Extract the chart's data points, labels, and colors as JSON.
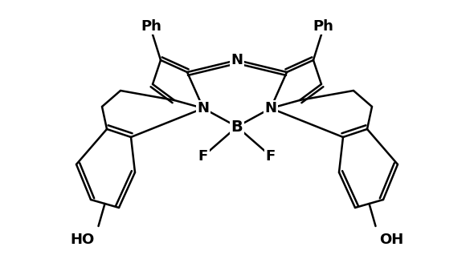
{
  "bg_color": "#ffffff",
  "line_color": "#000000",
  "lw": 1.8,
  "figsize": [
    5.9,
    3.23
  ],
  "dpi": 100,
  "xlim": [
    0,
    590
  ],
  "ylim": [
    0,
    323
  ]
}
